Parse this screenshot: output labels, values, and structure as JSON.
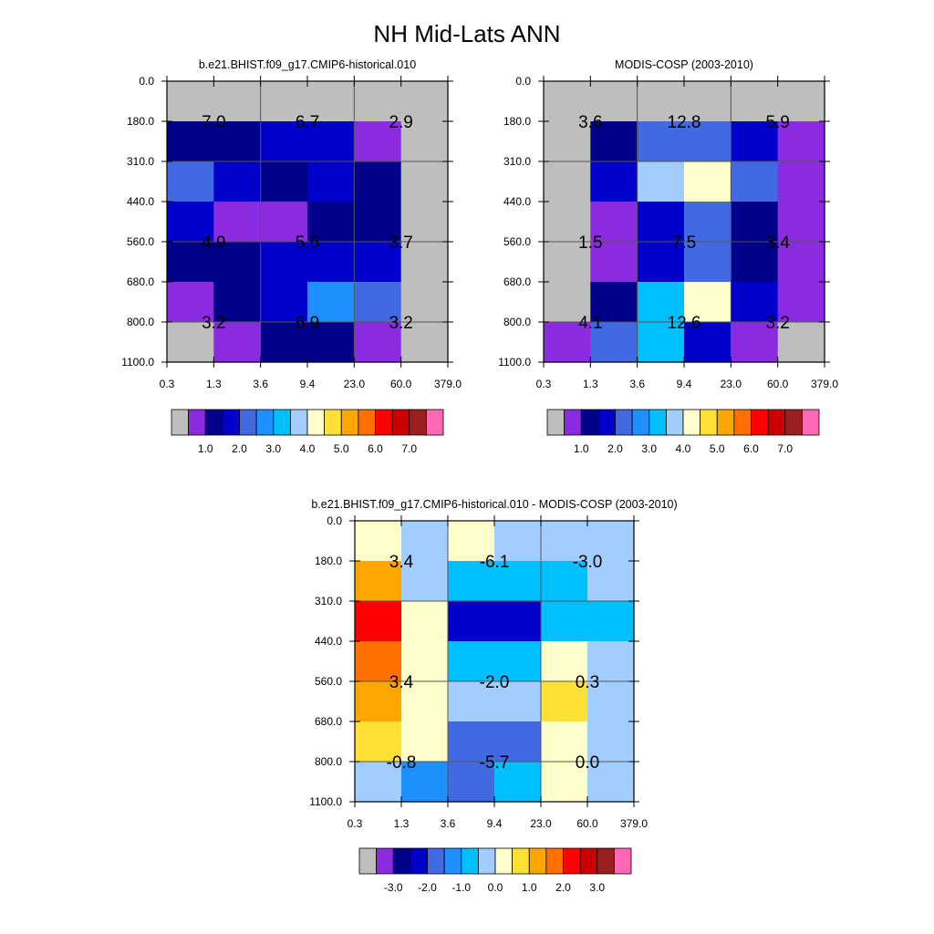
{
  "figure_title": "NH Mid-Lats ANN",
  "chart_data": [
    {
      "type": "heatmap",
      "title": "b.e21.BHIST.f09_g17.CMIP6-historical.010",
      "xticks": [
        "0.3",
        "1.3",
        "3.6",
        "9.4",
        "23.0",
        "60.0",
        "379.0"
      ],
      "yticks": [
        "0.0",
        "180.0",
        "310.0",
        "440.0",
        "560.0",
        "680.0",
        "800.0",
        "1100.0"
      ],
      "cell_colors": [
        [
          "#BEBEBE",
          "#BEBEBE",
          "#BEBEBE",
          "#BEBEBE",
          "#BEBEBE",
          "#BEBEBE"
        ],
        [
          "#00008B",
          "#00008B",
          "#0000CD",
          "#0000CD",
          "#8A2BE2",
          "#BEBEBE"
        ],
        [
          "#4169E1",
          "#0000CD",
          "#00008B",
          "#0000CD",
          "#00008B",
          "#BEBEBE"
        ],
        [
          "#0000CD",
          "#8A2BE2",
          "#8A2BE2",
          "#00008B",
          "#00008B",
          "#BEBEBE"
        ],
        [
          "#00008B",
          "#00008B",
          "#0000CD",
          "#0000CD",
          "#0000CD",
          "#BEBEBE"
        ],
        [
          "#8A2BE2",
          "#00008B",
          "#0000CD",
          "#1E90FF",
          "#4169E1",
          "#BEBEBE"
        ],
        [
          "#BEBEBE",
          "#8A2BE2",
          "#00008B",
          "#00008B",
          "#8A2BE2",
          "#BEBEBE"
        ]
      ],
      "labels": [
        {
          "text": "7.0",
          "col": 1,
          "row": 1
        },
        {
          "text": "6.7",
          "col": 3,
          "row": 1
        },
        {
          "text": "2.9",
          "col": 5,
          "row": 1
        },
        {
          "text": "4.9",
          "col": 1,
          "row": 4
        },
        {
          "text": "5.5",
          "col": 3,
          "row": 4
        },
        {
          "text": "3.7",
          "col": 5,
          "row": 4
        },
        {
          "text": "3.2",
          "col": 1,
          "row": 6
        },
        {
          "text": "6.9",
          "col": 3,
          "row": 6
        },
        {
          "text": "3.2",
          "col": 5,
          "row": 6
        }
      ],
      "colorbar": {
        "colors": [
          "#BEBEBE",
          "#8A2BE2",
          "#00008B",
          "#0000CD",
          "#4169E1",
          "#1E90FF",
          "#00BFFF",
          "#A2CDFF",
          "#FFFFCC",
          "#FFE135",
          "#FFA500",
          "#FF7000",
          "#FF0000",
          "#CD0000",
          "#9C1F1F",
          "#FF69B4"
        ],
        "labels": [
          "1.0",
          "2.0",
          "3.0",
          "4.0",
          "5.0",
          "6.0",
          "7.0"
        ],
        "first_label_boundary": 2
      }
    },
    {
      "type": "heatmap",
      "title": "MODIS-COSP (2003-2010)",
      "xticks": [
        "0.3",
        "1.3",
        "3.6",
        "9.4",
        "23.0",
        "60.0",
        "379.0"
      ],
      "yticks": [
        "0.0",
        "180.0",
        "310.0",
        "440.0",
        "560.0",
        "680.0",
        "800.0",
        "1100.0"
      ],
      "cell_colors": [
        [
          "#BEBEBE",
          "#BEBEBE",
          "#BEBEBE",
          "#BEBEBE",
          "#BEBEBE",
          "#BEBEBE"
        ],
        [
          "#BEBEBE",
          "#00008B",
          "#4169E1",
          "#4169E1",
          "#0000CD",
          "#8A2BE2"
        ],
        [
          "#BEBEBE",
          "#0000CD",
          "#A2CDFF",
          "#FFFFCC",
          "#4169E1",
          "#8A2BE2"
        ],
        [
          "#BEBEBE",
          "#8A2BE2",
          "#0000CD",
          "#4169E1",
          "#00008B",
          "#8A2BE2"
        ],
        [
          "#BEBEBE",
          "#8A2BE2",
          "#0000CD",
          "#4169E1",
          "#00008B",
          "#8A2BE2"
        ],
        [
          "#BEBEBE",
          "#00008B",
          "#00BFFF",
          "#FFFFCC",
          "#0000CD",
          "#8A2BE2"
        ],
        [
          "#8A2BE2",
          "#4169E1",
          "#00BFFF",
          "#0000CD",
          "#8A2BE2",
          "#BEBEBE"
        ]
      ],
      "labels": [
        {
          "text": "3.6",
          "col": 1,
          "row": 1
        },
        {
          "text": "12.8",
          "col": 3,
          "row": 1
        },
        {
          "text": "5.9",
          "col": 5,
          "row": 1
        },
        {
          "text": "1.5",
          "col": 1,
          "row": 4
        },
        {
          "text": "7.5",
          "col": 3,
          "row": 4
        },
        {
          "text": "3.4",
          "col": 5,
          "row": 4
        },
        {
          "text": "4.1",
          "col": 1,
          "row": 6
        },
        {
          "text": "12.6",
          "col": 3,
          "row": 6
        },
        {
          "text": "3.2",
          "col": 5,
          "row": 6
        }
      ],
      "colorbar": {
        "colors": [
          "#BEBEBE",
          "#8A2BE2",
          "#00008B",
          "#0000CD",
          "#4169E1",
          "#1E90FF",
          "#00BFFF",
          "#A2CDFF",
          "#FFFFCC",
          "#FFE135",
          "#FFA500",
          "#FF7000",
          "#FF0000",
          "#CD0000",
          "#9C1F1F",
          "#FF69B4"
        ],
        "labels": [
          "1.0",
          "2.0",
          "3.0",
          "4.0",
          "5.0",
          "6.0",
          "7.0"
        ],
        "first_label_boundary": 2
      }
    },
    {
      "type": "heatmap",
      "title": "b.e21.BHIST.f09_g17.CMIP6-historical.010 - MODIS-COSP (2003-2010)",
      "xticks": [
        "0.3",
        "1.3",
        "3.6",
        "9.4",
        "23.0",
        "60.0",
        "379.0"
      ],
      "yticks": [
        "0.0",
        "180.0",
        "310.0",
        "440.0",
        "560.0",
        "680.0",
        "800.0",
        "1100.0"
      ],
      "cell_colors": [
        [
          "#FFFFCC",
          "#A2CDFF",
          "#FFFFCC",
          "#A2CDFF",
          "#A2CDFF",
          "#A2CDFF"
        ],
        [
          "#FFA500",
          "#A2CDFF",
          "#00BFFF",
          "#00BFFF",
          "#00BFFF",
          "#A2CDFF"
        ],
        [
          "#FF0000",
          "#FFFFCC",
          "#0000CD",
          "#0000CD",
          "#00BFFF",
          "#00BFFF"
        ],
        [
          "#FF7000",
          "#FFFFCC",
          "#00BFFF",
          "#00BFFF",
          "#FFFFCC",
          "#A2CDFF"
        ],
        [
          "#FFA500",
          "#FFFFCC",
          "#A2CDFF",
          "#A2CDFF",
          "#FFE135",
          "#A2CDFF"
        ],
        [
          "#FFE135",
          "#FFFFCC",
          "#4169E1",
          "#4169E1",
          "#FFFFCC",
          "#A2CDFF"
        ],
        [
          "#A2CDFF",
          "#1E90FF",
          "#4169E1",
          "#00BFFF",
          "#FFFFCC",
          "#A2CDFF"
        ]
      ],
      "labels": [
        {
          "text": "3.4",
          "col": 1,
          "row": 1
        },
        {
          "text": "-6.1",
          "col": 3,
          "row": 1
        },
        {
          "text": "-3.0",
          "col": 5,
          "row": 1
        },
        {
          "text": "3.4",
          "col": 1,
          "row": 4
        },
        {
          "text": "-2.0",
          "col": 3,
          "row": 4
        },
        {
          "text": "0.3",
          "col": 5,
          "row": 4
        },
        {
          "text": "-0.8",
          "col": 1,
          "row": 6
        },
        {
          "text": "-5.7",
          "col": 3,
          "row": 6
        },
        {
          "text": "0.0",
          "col": 5,
          "row": 6
        }
      ],
      "colorbar": {
        "colors": [
          "#BEBEBE",
          "#8A2BE2",
          "#00008B",
          "#0000CD",
          "#4169E1",
          "#1E90FF",
          "#00BFFF",
          "#A2CDFF",
          "#FFFFCC",
          "#FFE135",
          "#FFA500",
          "#FF7000",
          "#FF0000",
          "#CD0000",
          "#9C1F1F",
          "#FF69B4"
        ],
        "labels": [
          "-3.0",
          "-2.0",
          "-1.0",
          "0.0",
          "1.0",
          "2.0",
          "3.0"
        ],
        "first_label_boundary": 2
      }
    }
  ]
}
